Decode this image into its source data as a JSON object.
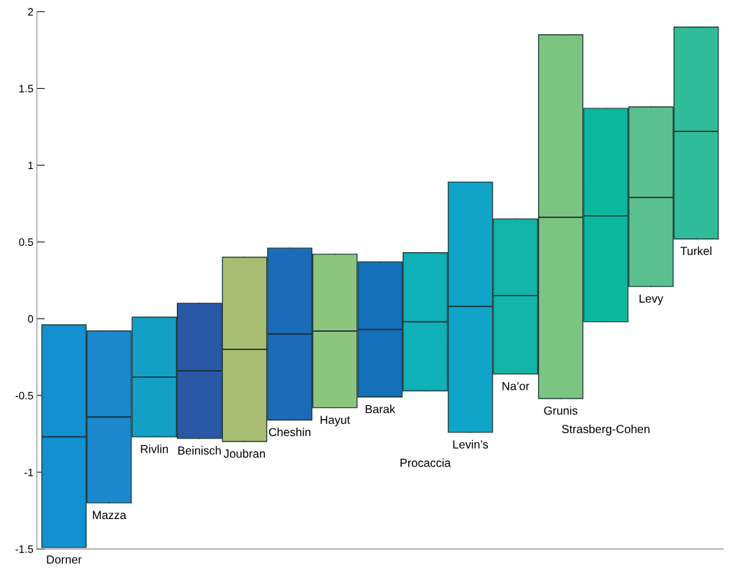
{
  "chart_data": {
    "type": "box",
    "categories": [
      "Dorner",
      "Mazza",
      "Rivlin",
      "Beinisch",
      "Joubran",
      "Cheshin",
      "Hayut",
      "Barak",
      "Procaccia",
      "Levin’s",
      "Na’or",
      "Grunis",
      "Strasberg-Cohen",
      "Levy",
      "Turkel"
    ],
    "boxes": [
      {
        "low": -1.49,
        "q1": -1.49,
        "median": -0.77,
        "q3": -0.04,
        "high": -0.04
      },
      {
        "low": -1.2,
        "q1": -1.2,
        "median": -0.64,
        "q3": -0.08,
        "high": -0.08
      },
      {
        "low": -0.77,
        "q1": -0.77,
        "median": -0.38,
        "q3": 0.01,
        "high": 0.01
      },
      {
        "low": -0.78,
        "q1": -0.78,
        "median": -0.34,
        "q3": 0.1,
        "high": 0.1
      },
      {
        "low": -0.8,
        "q1": -0.8,
        "median": -0.2,
        "q3": 0.4,
        "high": 0.4
      },
      {
        "low": -0.66,
        "q1": -0.66,
        "median": -0.1,
        "q3": 0.46,
        "high": 0.46
      },
      {
        "low": -0.58,
        "q1": -0.58,
        "median": -0.08,
        "q3": 0.42,
        "high": 0.42
      },
      {
        "low": -0.51,
        "q1": -0.51,
        "median": -0.07,
        "q3": 0.37,
        "high": 0.37
      },
      {
        "low": -0.47,
        "q1": -0.47,
        "median": -0.02,
        "q3": 0.43,
        "high": 0.43
      },
      {
        "low": -0.74,
        "q1": -0.74,
        "median": 0.08,
        "q3": 0.89,
        "high": 0.89
      },
      {
        "low": -0.36,
        "q1": -0.36,
        "median": 0.15,
        "q3": 0.65,
        "high": 0.65
      },
      {
        "low": -0.52,
        "q1": -0.52,
        "median": 0.66,
        "q3": 1.85,
        "high": 1.85
      },
      {
        "low": -0.02,
        "q1": -0.02,
        "median": 0.67,
        "q3": 1.37,
        "high": 1.37
      },
      {
        "low": 0.21,
        "q1": 0.21,
        "median": 0.79,
        "q3": 1.38,
        "high": 1.38
      },
      {
        "low": 0.52,
        "q1": 0.52,
        "median": 1.22,
        "q3": 1.9,
        "high": 1.9
      }
    ],
    "colors": [
      "#1191d0",
      "#1b88cc",
      "#14a0c6",
      "#2a58a6",
      "#a9bd72",
      "#1b6bb8",
      "#8dc47e",
      "#1470b8",
      "#0fb0b8",
      "#10a5c8",
      "#13b5a8",
      "#7cc481",
      "#0ab8a0",
      "#5bc090",
      "#30bc98"
    ],
    "ylim": [
      -1.5,
      2
    ],
    "yticks": [
      -1.5,
      -1,
      -0.5,
      0,
      0.5,
      1,
      1.5,
      2
    ],
    "grid": false,
    "tick_labels": "y"
  }
}
